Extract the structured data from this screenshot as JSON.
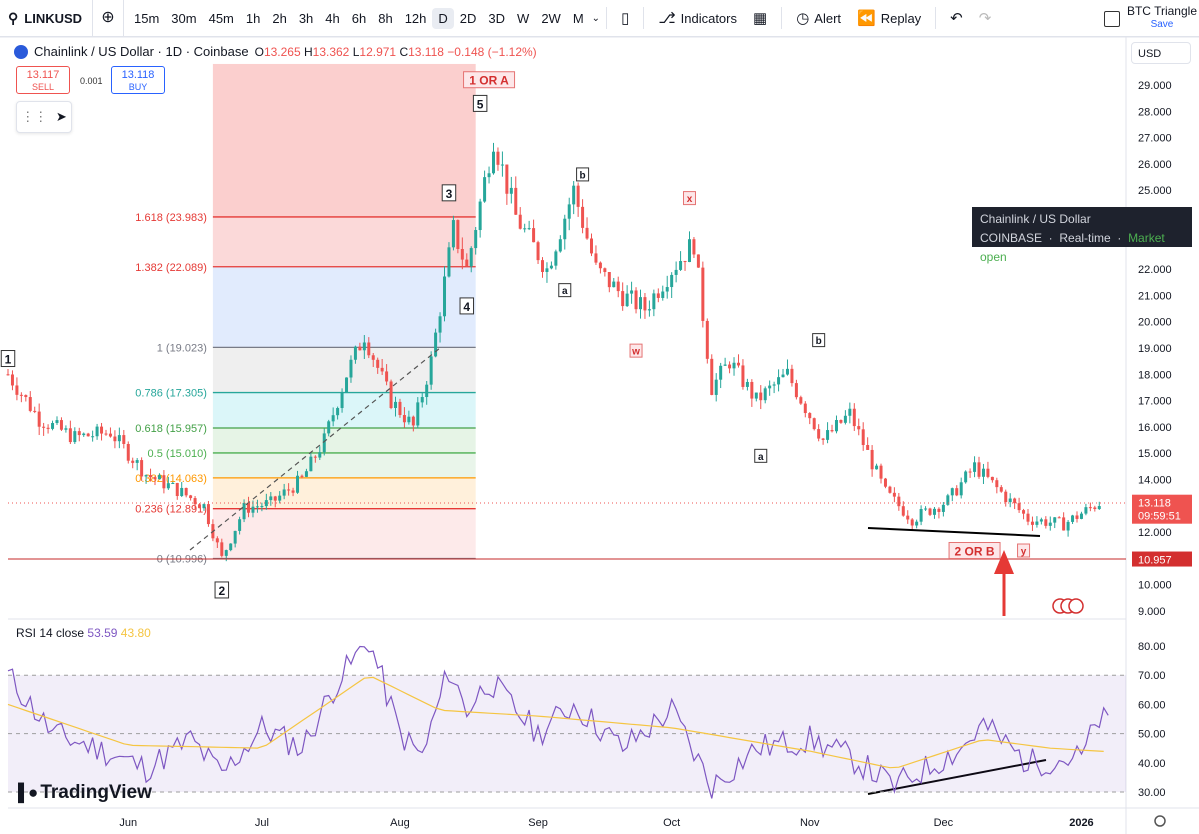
{
  "toolbar": {
    "symbol": "LINKUSD",
    "timeframes": [
      "15m",
      "30m",
      "45m",
      "1h",
      "2h",
      "3h",
      "4h",
      "6h",
      "8h",
      "12h",
      "D",
      "2D",
      "3D",
      "W",
      "2W",
      "M"
    ],
    "active_timeframe": "D",
    "indicators_label": "Indicators",
    "alert_label": "Alert",
    "replay_label": "Replay",
    "layout_title": "BTC Triangle",
    "save_label": "Save"
  },
  "legend": {
    "title": "Chainlink / US Dollar · 1D · Coinbase",
    "o_label": "O",
    "o": "13.265",
    "h_label": "H",
    "h": "13.362",
    "l_label": "L",
    "l": "12.971",
    "c_label": "C",
    "c": "13.118",
    "change": "−0.148 (−1.12%)"
  },
  "trade": {
    "sell_price": "13.117",
    "sell_label": "SELL",
    "spread": "0.001",
    "buy_price": "13.118",
    "buy_label": "BUY"
  },
  "tooltip": {
    "name": "Chainlink / US Dollar",
    "exchange": "COINBASE",
    "feed": "Real-time",
    "status": "Market open"
  },
  "price_scale": {
    "currency": "USD",
    "ticks": [
      "29.000",
      "28.000",
      "27.000",
      "26.000",
      "25.000",
      "24.000",
      "23.000",
      "22.000",
      "21.000",
      "20.000",
      "19.000",
      "18.000",
      "17.000",
      "16.000",
      "15.000",
      "14.000",
      "13.000",
      "12.000",
      "11.000",
      "10.000",
      "9.000"
    ],
    "last_price": "13.118",
    "countdown": "09:59:51",
    "line_price": "10.957"
  },
  "rsi": {
    "label": "RSI 14 close",
    "value": "53.59",
    "ma_value": "43.80",
    "ticks": [
      "80.00",
      "70.00",
      "60.00",
      "50.00",
      "40.00",
      "30.00"
    ]
  },
  "time_axis": [
    "Jun",
    "Jul",
    "Aug",
    "Sep",
    "Oct",
    "Nov",
    "Dec",
    "2026"
  ],
  "brand": "TradingView",
  "chart_data": {
    "type": "candlestick",
    "title": "Chainlink / US Dollar · 1D · Coinbase",
    "ylim": [
      8.6,
      30
    ],
    "x_range": [
      "2025-05-05",
      "2026-01-11"
    ],
    "last_close": 13.118,
    "close_path": [
      [
        "2025-05-05",
        18.0
      ],
      [
        "2025-05-12",
        16.3
      ],
      [
        "2025-05-20",
        15.6
      ],
      [
        "2025-05-28",
        15.8
      ],
      [
        "2025-06-05",
        14.2
      ],
      [
        "2025-06-12",
        13.6
      ],
      [
        "2025-06-18",
        13.0
      ],
      [
        "2025-06-22",
        11.0
      ],
      [
        "2025-06-27",
        12.9
      ],
      [
        "2025-07-03",
        13.1
      ],
      [
        "2025-07-10",
        14.0
      ],
      [
        "2025-07-15",
        15.5
      ],
      [
        "2025-07-20",
        18.0
      ],
      [
        "2025-07-24",
        19.5
      ],
      [
        "2025-07-30",
        17.0
      ],
      [
        "2025-08-04",
        16.0
      ],
      [
        "2025-08-08",
        18.5
      ],
      [
        "2025-08-13",
        23.5
      ],
      [
        "2025-08-16",
        22.0
      ],
      [
        "2025-08-22",
        27.0
      ],
      [
        "2025-08-27",
        24.0
      ],
      [
        "2025-09-03",
        22.0
      ],
      [
        "2025-09-09",
        25.0
      ],
      [
        "2025-09-14",
        22.0
      ],
      [
        "2025-09-20",
        21.0
      ],
      [
        "2025-09-25",
        20.5
      ],
      [
        "2025-10-01",
        22.0
      ],
      [
        "2025-10-06",
        23.0
      ],
      [
        "2025-10-10",
        17.5
      ],
      [
        "2025-10-14",
        18.5
      ],
      [
        "2025-10-20",
        17.0
      ],
      [
        "2025-10-27",
        18.0
      ],
      [
        "2025-11-04",
        15.5
      ],
      [
        "2025-11-10",
        16.5
      ],
      [
        "2025-11-18",
        13.5
      ],
      [
        "2025-11-24",
        12.5
      ],
      [
        "2025-12-02",
        13.2
      ],
      [
        "2025-12-08",
        14.5
      ],
      [
        "2025-12-14",
        13.5
      ],
      [
        "2025-12-20",
        12.5
      ],
      [
        "2025-12-28",
        12.3
      ],
      [
        "2026-01-05",
        13.118
      ]
    ],
    "fibonacci": [
      {
        "level": "1.618",
        "price": "23.983"
      },
      {
        "level": "1.382",
        "price": "22.089"
      },
      {
        "level": "1",
        "price": "19.023"
      },
      {
        "level": "0.786",
        "price": "17.305"
      },
      {
        "level": "0.618",
        "price": "15.957"
      },
      {
        "level": "0.5",
        "price": "15.010"
      },
      {
        "level": "0.382",
        "price": "14.063"
      },
      {
        "level": "0.236",
        "price": "12.891"
      },
      {
        "level": "0",
        "price": "10.996"
      }
    ],
    "wave_labels": [
      {
        "text": "1",
        "date": "2025-05-05",
        "price": 18.6
      },
      {
        "text": "2",
        "date": "2025-06-22",
        "price": 9.8
      },
      {
        "text": "3",
        "date": "2025-08-12",
        "price": 24.9
      },
      {
        "text": "4",
        "date": "2025-08-16",
        "price": 20.6
      },
      {
        "text": "5",
        "date": "2025-08-19",
        "price": 28.3
      },
      {
        "text": "1 OR A",
        "date": "2025-08-21",
        "price": 29.2
      },
      {
        "text": "b",
        "date": "2025-09-11",
        "price": 25.6
      },
      {
        "text": "a",
        "date": "2025-09-07",
        "price": 21.2
      },
      {
        "text": "x",
        "date": "2025-10-05",
        "price": 24.7
      },
      {
        "text": "w",
        "date": "2025-09-23",
        "price": 18.9
      },
      {
        "text": "b",
        "date": "2025-11-03",
        "price": 19.3
      },
      {
        "text": "a",
        "date": "2025-10-21",
        "price": 14.9
      },
      {
        "text": "2 OR B",
        "date": "2025-12-08",
        "price": 11.3
      },
      {
        "text": "y",
        "date": "2025-12-19",
        "price": 11.3
      }
    ],
    "rsi_series": {
      "name": "RSI 14 close",
      "ylim": [
        27,
        85
      ],
      "path": [
        [
          "2025-05-05",
          70
        ],
        [
          "2025-05-15",
          50
        ],
        [
          "2025-05-25",
          45
        ],
        [
          "2025-06-05",
          38
        ],
        [
          "2025-06-15",
          48
        ],
        [
          "2025-06-22",
          36
        ],
        [
          "2025-07-01",
          52
        ],
        [
          "2025-07-10",
          45
        ],
        [
          "2025-07-18",
          68
        ],
        [
          "2025-07-25",
          82
        ],
        [
          "2025-08-01",
          50
        ],
        [
          "2025-08-06",
          42
        ],
        [
          "2025-08-12",
          72
        ],
        [
          "2025-08-16",
          58
        ],
        [
          "2025-08-21",
          68
        ],
        [
          "2025-09-01",
          50
        ],
        [
          "2025-09-09",
          60
        ],
        [
          "2025-09-20",
          45
        ],
        [
          "2025-10-01",
          58
        ],
        [
          "2025-10-10",
          32
        ],
        [
          "2025-10-20",
          45
        ],
        [
          "2025-11-01",
          48
        ],
        [
          "2025-11-10",
          42
        ],
        [
          "2025-11-20",
          32
        ],
        [
          "2025-11-27",
          38
        ],
        [
          "2025-12-05",
          45
        ],
        [
          "2025-12-10",
          53
        ],
        [
          "2025-12-20",
          40
        ],
        [
          "2026-01-01",
          42
        ],
        [
          "2026-01-05",
          55
        ],
        [
          "2026-01-07",
          53.59
        ]
      ]
    },
    "rsi_ma_series": {
      "path": [
        [
          "2025-05-05",
          60
        ],
        [
          "2025-06-01",
          46
        ],
        [
          "2025-07-01",
          45
        ],
        [
          "2025-07-25",
          70
        ],
        [
          "2025-08-10",
          58
        ],
        [
          "2025-09-01",
          56
        ],
        [
          "2025-10-01",
          52
        ],
        [
          "2025-11-01",
          44
        ],
        [
          "2025-11-20",
          38
        ],
        [
          "2025-12-10",
          48
        ],
        [
          "2025-12-25",
          45
        ],
        [
          "2026-01-07",
          43.8
        ]
      ]
    }
  }
}
